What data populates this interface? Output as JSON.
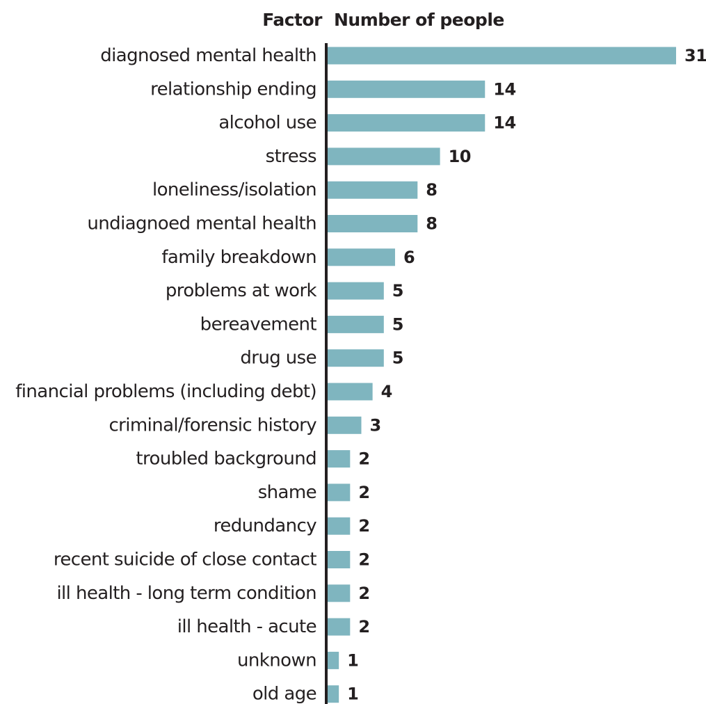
{
  "header": {
    "category_column": "Factor",
    "value_column": "Number of people"
  },
  "colors": {
    "bar": "#7fb5bf",
    "axis": "#231f20",
    "text": "#231f20"
  },
  "chart_data": {
    "type": "bar",
    "orientation": "horizontal",
    "title": "",
    "xlabel": "Number of people",
    "ylabel": "Factor",
    "categories": [
      "diagnosed mental health",
      "relationship ending",
      "alcohol use",
      "stress",
      "loneliness/isolation",
      "undiagnoed mental health",
      "family breakdown",
      "problems at work",
      "bereavement",
      "drug use",
      "financial problems (including debt)",
      "criminal/forensic history",
      "troubled background",
      "shame",
      "redundancy",
      "recent suicide of close contact",
      "ill health - long term condition",
      "ill health - acute",
      "unknown",
      "old age"
    ],
    "values": [
      31,
      14,
      14,
      10,
      8,
      8,
      6,
      5,
      5,
      5,
      4,
      3,
      2,
      2,
      2,
      2,
      2,
      2,
      1,
      1
    ],
    "xlim": [
      0,
      31
    ],
    "grid": false,
    "legend": "none",
    "data_labels": true
  }
}
